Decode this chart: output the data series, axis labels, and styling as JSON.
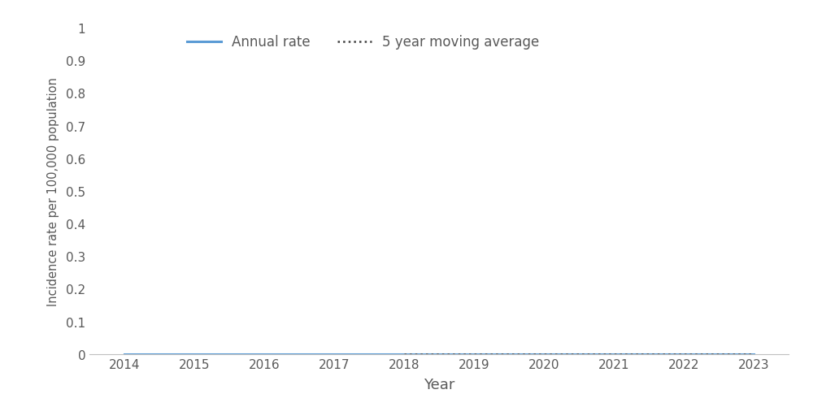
{
  "years": [
    2014,
    2015,
    2016,
    2017,
    2018,
    2019,
    2020,
    2021,
    2022,
    2023
  ],
  "annual_rate": [
    0.0,
    0.0,
    0.0,
    0.0,
    0.0,
    0.0,
    0.0,
    0.0,
    0.0,
    0.0
  ],
  "moving_avg": [
    null,
    null,
    null,
    null,
    0.0,
    0.0,
    0.0,
    0.0,
    0.0,
    0.0
  ],
  "annual_rate_color": "#5B9BD5",
  "moving_avg_color": "#404040",
  "ylabel": "Incidence rate per 100,000 population",
  "xlabel": "Year",
  "ylim": [
    0,
    1.0
  ],
  "yticks": [
    0,
    0.1,
    0.2,
    0.3,
    0.4,
    0.5,
    0.6,
    0.7,
    0.8,
    0.9,
    1.0
  ],
  "ytick_labels": [
    "0",
    "0.1",
    "0.2",
    "0.3",
    "0.4",
    "0.5",
    "0.6",
    "0.7",
    "0.8",
    "0.9",
    "1"
  ],
  "legend_annual_label": "Annual rate",
  "legend_ma_label": "5 year moving average",
  "annual_rate_linewidth": 2.2,
  "moving_avg_linewidth": 1.8,
  "background_color": "#ffffff",
  "spine_color": "#c0c0c0",
  "tick_color": "#595959",
  "label_color": "#595959"
}
